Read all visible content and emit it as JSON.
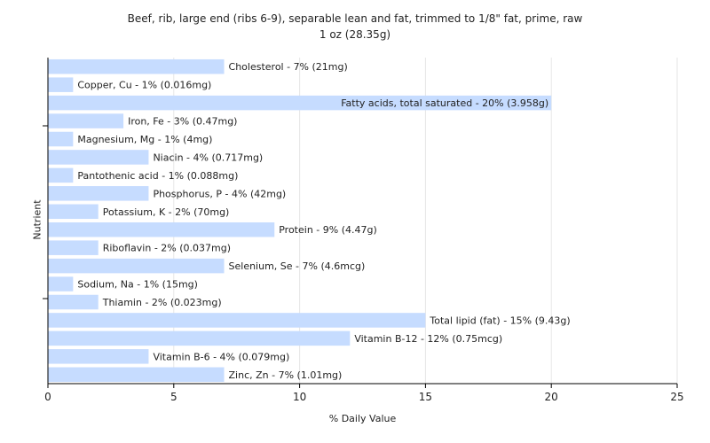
{
  "chart_data": {
    "type": "bar",
    "orientation": "horizontal",
    "title": "Beef, rib, large end (ribs 6-9), separable lean and fat, trimmed to 1/8\" fat, prime, raw",
    "subtitle": "1 oz (28.35g)",
    "xlabel": "% Daily Value",
    "ylabel": "Nutrient",
    "xlim": [
      0,
      25
    ],
    "xticks": [
      "0",
      "5",
      "10",
      "15",
      "20",
      "25"
    ],
    "grid": true,
    "bar_color": "#c6dcff",
    "categories": [
      "Cholesterol",
      "Copper, Cu",
      "Fatty acids, total saturated",
      "Iron, Fe",
      "Magnesium, Mg",
      "Niacin",
      "Pantothenic acid",
      "Phosphorus, P",
      "Potassium, K",
      "Protein",
      "Riboflavin",
      "Selenium, Se",
      "Sodium, Na",
      "Thiamin",
      "Total lipid (fat)",
      "Vitamin B-12",
      "Vitamin B-6",
      "Zinc, Zn"
    ],
    "values": [
      7,
      1,
      20,
      3,
      1,
      4,
      1,
      4,
      2,
      9,
      2,
      7,
      1,
      2,
      15,
      12,
      4,
      7
    ],
    "labels": [
      "Cholesterol - 7% (21mg)",
      "Copper, Cu - 1% (0.016mg)",
      "Fatty acids, total saturated - 20% (3.958g)",
      "Iron, Fe - 3% (0.47mg)",
      "Magnesium, Mg - 1% (4mg)",
      "Niacin - 4% (0.717mg)",
      "Pantothenic acid - 1% (0.088mg)",
      "Phosphorus, P - 4% (42mg)",
      "Potassium, K - 2% (70mg)",
      "Protein - 9% (4.47g)",
      "Riboflavin - 2% (0.037mg)",
      "Selenium, Se - 7% (4.6mcg)",
      "Sodium, Na - 1% (15mg)",
      "Thiamin - 2% (0.023mg)",
      "Total lipid (fat) - 15% (9.43g)",
      "Vitamin B-12 - 12% (0.75mcg)",
      "Vitamin B-6 - 4% (0.079mg)",
      "Zinc, Zn - 7% (1.01mg)"
    ]
  }
}
